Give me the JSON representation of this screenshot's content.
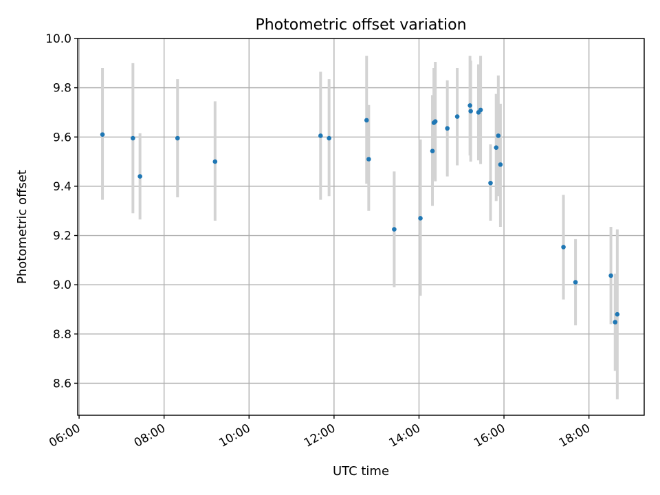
{
  "chart_data": {
    "type": "scatter",
    "title": "Photometric offset variation",
    "xlabel": "UTC time",
    "ylabel": "Photometric offset",
    "x_ticks": [
      "06:00",
      "08:00",
      "10:00",
      "12:00",
      "14:00",
      "16:00",
      "18:00"
    ],
    "y_ticks": [
      "8.6",
      "8.8",
      "9.0",
      "9.2",
      "9.4",
      "9.6",
      "9.8",
      "10.0"
    ],
    "xlim": [
      "05:58",
      "19:18"
    ],
    "ylim": [
      8.47,
      10.0
    ],
    "grid": true,
    "colors": {
      "points": "#1f77b4",
      "error_bars": "#d3d3d3",
      "grid": "#b0b0b0"
    },
    "points": [
      {
        "x": "06:33",
        "y": 9.61,
        "ylow": 9.345,
        "yhigh": 9.88
      },
      {
        "x": "07:16",
        "y": 9.595,
        "ylow": 9.29,
        "yhigh": 9.9
      },
      {
        "x": "07:26",
        "y": 9.44,
        "ylow": 9.265,
        "yhigh": 9.615
      },
      {
        "x": "08:19",
        "y": 9.595,
        "ylow": 9.355,
        "yhigh": 9.835
      },
      {
        "x": "09:12",
        "y": 9.5,
        "ylow": 9.26,
        "yhigh": 9.745
      },
      {
        "x": "11:41",
        "y": 9.605,
        "ylow": 9.345,
        "yhigh": 9.865
      },
      {
        "x": "11:53",
        "y": 9.595,
        "ylow": 9.36,
        "yhigh": 9.835
      },
      {
        "x": "12:46",
        "y": 9.668,
        "ylow": 9.41,
        "yhigh": 9.93
      },
      {
        "x": "12:49",
        "y": 9.51,
        "ylow": 9.3,
        "yhigh": 9.73
      },
      {
        "x": "13:25",
        "y": 9.225,
        "ylow": 8.99,
        "yhigh": 9.46
      },
      {
        "x": "14:02",
        "y": 9.27,
        "ylow": 8.955,
        "yhigh": 9.59
      },
      {
        "x": "14:19",
        "y": 9.543,
        "ylow": 9.32,
        "yhigh": 9.77
      },
      {
        "x": "14:21",
        "y": 9.658,
        "ylow": 9.43,
        "yhigh": 9.88
      },
      {
        "x": "14:23",
        "y": 9.663,
        "ylow": 9.42,
        "yhigh": 9.905
      },
      {
        "x": "14:40",
        "y": 9.635,
        "ylow": 9.44,
        "yhigh": 9.83
      },
      {
        "x": "14:54",
        "y": 9.683,
        "ylow": 9.485,
        "yhigh": 9.88
      },
      {
        "x": "15:12",
        "y": 9.728,
        "ylow": 9.525,
        "yhigh": 9.93
      },
      {
        "x": "15:13",
        "y": 9.705,
        "ylow": 9.5,
        "yhigh": 9.91
      },
      {
        "x": "15:24",
        "y": 9.7,
        "ylow": 9.505,
        "yhigh": 9.895
      },
      {
        "x": "15:27",
        "y": 9.71,
        "ylow": 9.49,
        "yhigh": 9.93
      },
      {
        "x": "15:41",
        "y": 9.413,
        "ylow": 9.26,
        "yhigh": 9.57
      },
      {
        "x": "15:49",
        "y": 9.557,
        "ylow": 9.34,
        "yhigh": 9.775
      },
      {
        "x": "15:52",
        "y": 9.605,
        "ylow": 9.36,
        "yhigh": 9.85
      },
      {
        "x": "15:55",
        "y": 9.488,
        "ylow": 9.235,
        "yhigh": 9.735
      },
      {
        "x": "17:24",
        "y": 9.153,
        "ylow": 8.94,
        "yhigh": 9.365
      },
      {
        "x": "17:41",
        "y": 9.01,
        "ylow": 8.835,
        "yhigh": 9.185
      },
      {
        "x": "18:31",
        "y": 9.037,
        "ylow": 8.84,
        "yhigh": 9.235
      },
      {
        "x": "18:37",
        "y": 8.848,
        "ylow": 8.65,
        "yhigh": 9.045
      },
      {
        "x": "18:40",
        "y": 8.88,
        "ylow": 8.535,
        "yhigh": 9.225
      }
    ]
  }
}
